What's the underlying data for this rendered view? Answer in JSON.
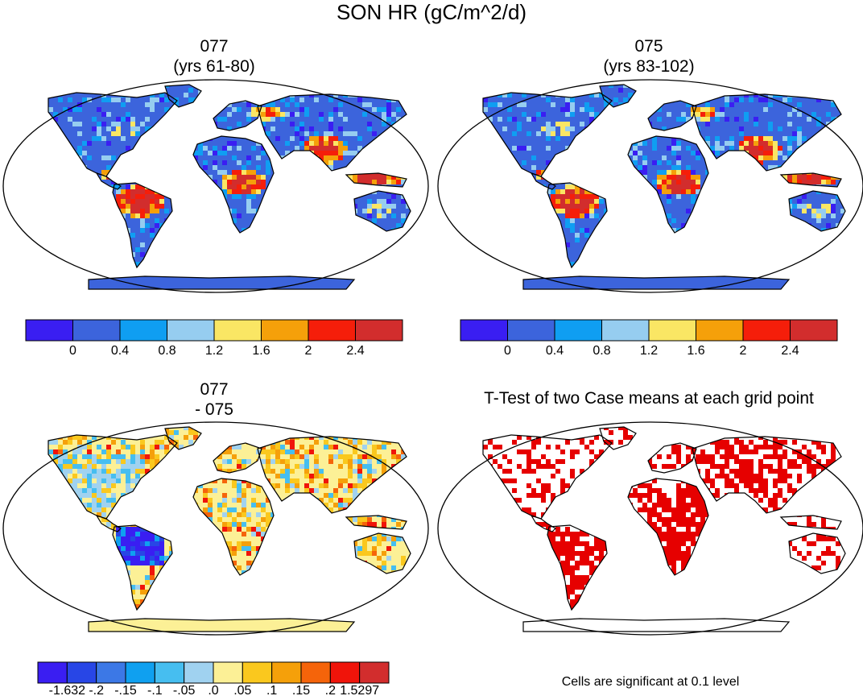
{
  "main_title": "SON HR (gC/m^2/d)",
  "panels": [
    {
      "title_line1": "077",
      "title_line2": "(yrs 61-80)",
      "scheme": "abs"
    },
    {
      "title_line1": "075",
      "title_line2": "(yrs 83-102)",
      "scheme": "abs"
    },
    {
      "title_line1": "077",
      "title_line2": "- 075",
      "scheme": "diff"
    },
    {
      "title_line1": "T-Test of two Case means at each grid point",
      "title_line2": "",
      "scheme": "ttest"
    }
  ],
  "colorbar_abs": {
    "colors": [
      "#3a1ef2",
      "#3c64dc",
      "#0f9ef2",
      "#96cdf0",
      "#fae664",
      "#f5a00a",
      "#f51e0a",
      "#d22d2d"
    ],
    "tick_labels": [
      "0",
      "0.4",
      "0.8",
      "1.2",
      "1.6",
      "2",
      "2.4"
    ]
  },
  "colorbar_diff": {
    "colors": [
      "#3a1ef2",
      "#2846e6",
      "#3c78e6",
      "#0fa0f0",
      "#46bef0",
      "#a0d2f0",
      "#fcf096",
      "#fac81e",
      "#f5a00a",
      "#f5640a",
      "#f0140a",
      "#d22d2d"
    ],
    "tick_labels": [
      "-1.632",
      "-.2",
      "-.15",
      "-.1",
      "-.05",
      ".0",
      ".05",
      ".1",
      ".15",
      ".2",
      "1.5297"
    ]
  },
  "ttest_note": "Cells are significant at 0.1 level",
  "ttest_color": "#e60000"
}
